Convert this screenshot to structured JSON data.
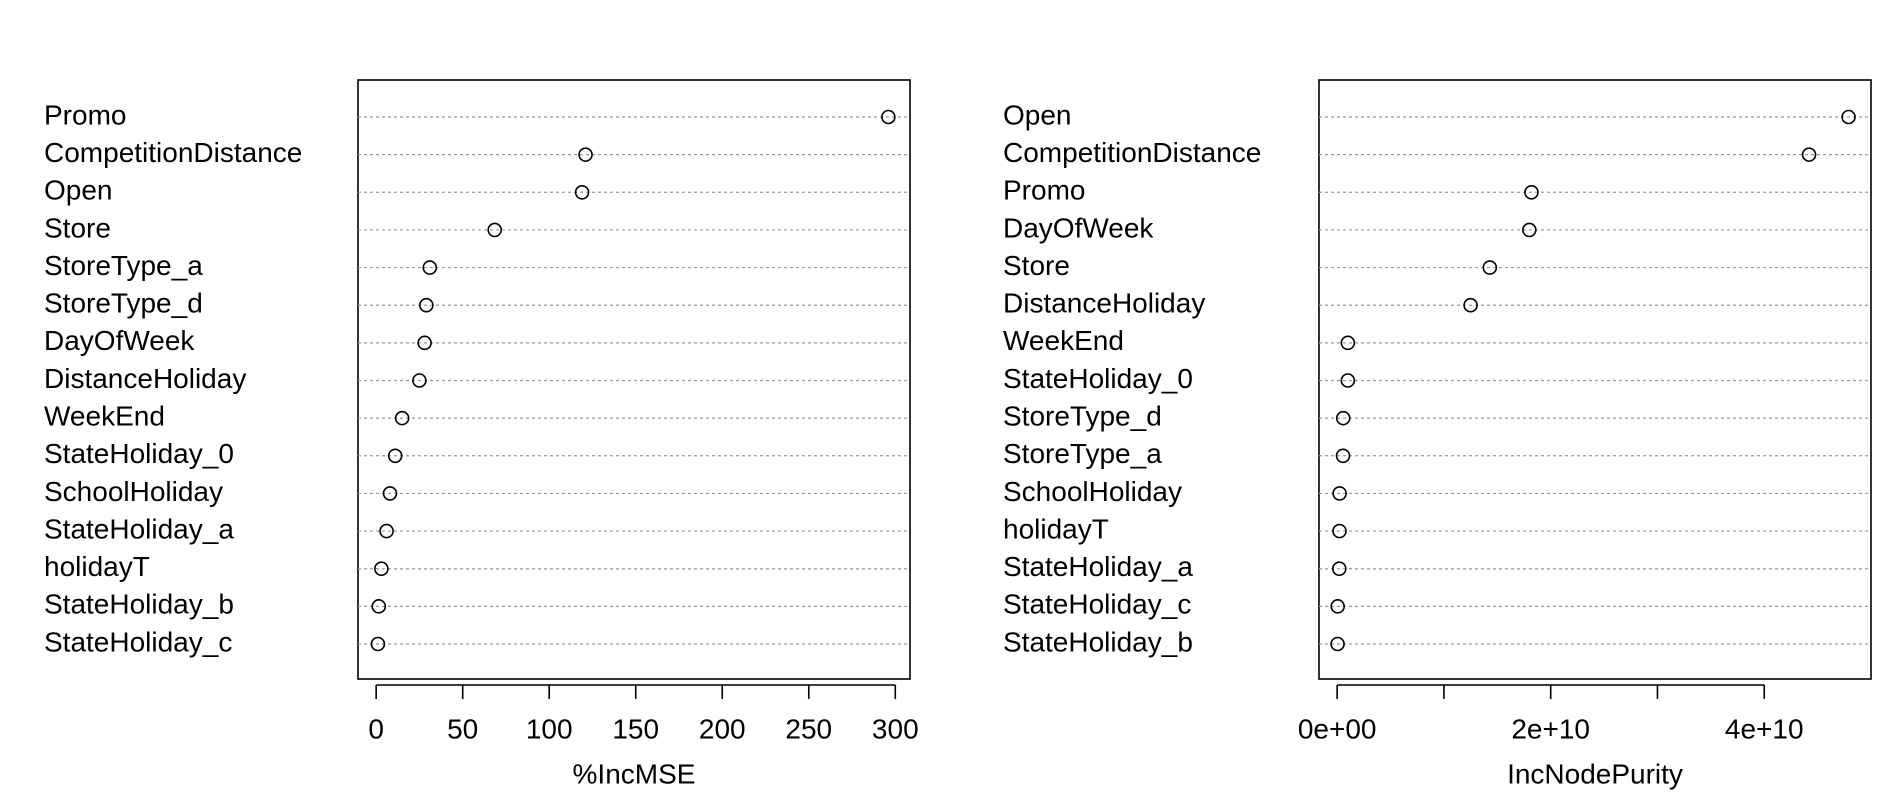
{
  "chart_data": [
    {
      "type": "dot",
      "x_label": "%IncMSE",
      "categories": [
        "Promo",
        "CompetitionDistance",
        "Open",
        "Store",
        "StoreType_a",
        "StoreType_d",
        "DayOfWeek",
        "DistanceHoliday",
        "WeekEnd",
        "StateHoliday_0",
        "SchoolHoliday",
        "StateHoliday_a",
        "holidayT",
        "StateHoliday_b",
        "StateHoliday_c"
      ],
      "values": [
        296,
        121,
        119,
        68.5,
        31,
        29,
        28,
        25,
        15,
        11,
        8,
        6,
        3,
        1.5,
        1
      ],
      "xlim": [
        -10.5,
        308.5
      ],
      "xticks": [
        0,
        50,
        100,
        150,
        200,
        250,
        300
      ],
      "color": "#000000"
    },
    {
      "type": "dot",
      "x_label": "IncNodePurity",
      "categories": [
        "Open",
        "CompetitionDistance",
        "Promo",
        "DayOfWeek",
        "Store",
        "DistanceHoliday",
        "WeekEnd",
        "StateHoliday_0",
        "StoreType_d",
        "StoreType_a",
        "SchoolHoliday",
        "holidayT",
        "StateHoliday_a",
        "StateHoliday_c",
        "StateHoliday_b"
      ],
      "values": [
        47900000000,
        44200000000,
        18200000000,
        18000000000,
        14300000000,
        12500000000,
        1000000000,
        1000000000,
        570000000,
        550000000,
        230000000,
        220000000,
        200000000,
        50000000,
        40000000
      ],
      "xlim": [
        -1700000000,
        50000000000
      ],
      "xticks": [
        {
          "value": 0,
          "label": "0e+00"
        },
        {
          "value": 20000000000,
          "label": "2e+10"
        },
        {
          "value": 40000000000,
          "label": "4e+10"
        }
      ],
      "xticks_unlabeled": [
        10000000000,
        30000000000
      ],
      "color": "#000000"
    }
  ]
}
